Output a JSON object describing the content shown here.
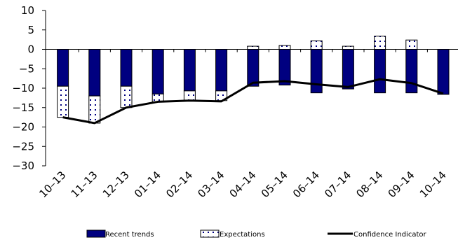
{
  "chart_data": {
    "type": "bar",
    "categories": [
      "10-13",
      "11-13",
      "12-13",
      "01-14",
      "02-14",
      "03-14",
      "04-14",
      "05-14",
      "06-14",
      "07-14",
      "08-14",
      "09-14",
      "10-14"
    ],
    "series": [
      {
        "name": "Recent trends",
        "kind": "stacked-bar",
        "color": "#000080",
        "values": [
          -9.5,
          -12,
          -9.5,
          -11.5,
          -10.7,
          -10.7,
          -9.5,
          -9.2,
          -11.2,
          -10.2,
          -11.2,
          -11.2,
          -11.6
        ]
      },
      {
        "name": "Expectations",
        "kind": "stacked-bar",
        "pattern": "dotted",
        "color": "#ffffff",
        "values": [
          -8,
          -7,
          -5.5,
          -2,
          -2.5,
          -2.5,
          0.8,
          1,
          2.2,
          0.8,
          3.4,
          2.4,
          0
        ]
      },
      {
        "name": "Confidence Indicator",
        "kind": "line",
        "color": "#000000",
        "values": [
          -17.5,
          -19,
          -15,
          -13.5,
          -13.2,
          -13.4,
          -8.6,
          -8.2,
          -9.0,
          -9.7,
          -7.7,
          -8.7,
          -11.4
        ]
      }
    ],
    "ylim": [
      -30,
      10
    ],
    "yticks": [
      10,
      5,
      0,
      -5,
      -10,
      -15,
      -20,
      -25,
      -30
    ],
    "grid": false,
    "legend_position": "bottom"
  }
}
